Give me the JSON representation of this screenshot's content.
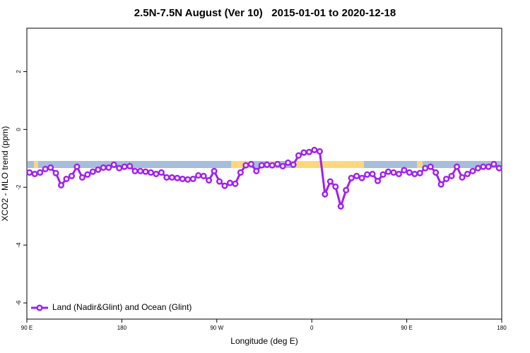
{
  "chart_data": {
    "type": "line",
    "title": "2.5N-7.5N August (Ver 10)   2015-01-01 to 2020-12-18",
    "x_label": "Longitude (deg E)",
    "y_label": "XCO2 - MLO trend (ppm)",
    "xlim": [
      90,
      540
    ],
    "ylim": [
      -6.56,
      3.5
    ],
    "xticks": [
      {
        "value": 90,
        "label": "90 E"
      },
      {
        "value": 180,
        "label": "180"
      },
      {
        "value": 270,
        "label": "90 W"
      },
      {
        "value": 360,
        "label": "0"
      },
      {
        "value": 450,
        "label": "90 E"
      },
      {
        "value": 540,
        "label": "180"
      }
    ],
    "yticks": [
      -6,
      -4,
      -2,
      0,
      2
    ],
    "legend": "bottom-left",
    "x": [
      92.5,
      97.5,
      102.5,
      107.5,
      112.5,
      117.5,
      122.5,
      127.5,
      132.5,
      137.5,
      142.5,
      147.5,
      152.5,
      157.5,
      162.5,
      167.5,
      172.5,
      177.5,
      182.5,
      187.5,
      192.5,
      197.5,
      202.5,
      207.5,
      212.5,
      217.5,
      222.5,
      227.5,
      232.5,
      237.5,
      242.5,
      247.5,
      252.5,
      257.5,
      262.5,
      267.5,
      272.5,
      277.5,
      282.5,
      287.5,
      292.5,
      297.5,
      302.5,
      307.5,
      312.5,
      317.5,
      322.5,
      327.5,
      332.5,
      337.5,
      342.5,
      347.5,
      352.5,
      357.5,
      362.5,
      367.5,
      372.5,
      377.5,
      382.5,
      387.5,
      392.5,
      397.5,
      402.5,
      407.5,
      412.5,
      417.5,
      422.5,
      427.5,
      432.5,
      437.5,
      442.5,
      447.5,
      452.5,
      457.5,
      462.5,
      467.5,
      472.5,
      477.5,
      482.5,
      487.5,
      492.5,
      497.5,
      502.5,
      507.5,
      512.5,
      517.5,
      522.5,
      527.5,
      532.5,
      537.5
    ],
    "series": [
      {
        "name": "Land (Nadir&Glint) and Ocean (Glint)",
        "color": "#a020f0",
        "values": [
          -1.49,
          -1.54,
          -1.49,
          -1.37,
          -1.32,
          -1.51,
          -1.93,
          -1.71,
          -1.61,
          -1.29,
          -1.66,
          -1.56,
          -1.46,
          -1.39,
          -1.32,
          -1.32,
          -1.22,
          -1.34,
          -1.29,
          -1.27,
          -1.44,
          -1.44,
          -1.46,
          -1.49,
          -1.54,
          -1.49,
          -1.66,
          -1.66,
          -1.68,
          -1.71,
          -1.73,
          -1.71,
          -1.59,
          -1.61,
          -1.76,
          -1.44,
          -1.8,
          -1.95,
          -1.85,
          -1.88,
          -1.49,
          -1.24,
          -1.2,
          -1.44,
          -1.24,
          -1.22,
          -1.24,
          -1.2,
          -1.27,
          -1.15,
          -1.22,
          -0.9,
          -0.8,
          -0.78,
          -0.71,
          -0.76,
          -2.24,
          -1.8,
          -1.98,
          -2.66,
          -2.1,
          -1.68,
          -1.61,
          -1.68,
          -1.56,
          -1.54,
          -1.78,
          -1.56,
          -1.46,
          -1.49,
          -1.54,
          -1.41,
          -1.49,
          -1.54,
          -1.51,
          -1.34,
          -1.29,
          -1.49,
          -1.9,
          -1.71,
          -1.61,
          -1.29,
          -1.66,
          -1.54,
          -1.44,
          -1.34,
          -1.29,
          -1.29,
          -1.2,
          -1.34
        ]
      }
    ]
  }
}
